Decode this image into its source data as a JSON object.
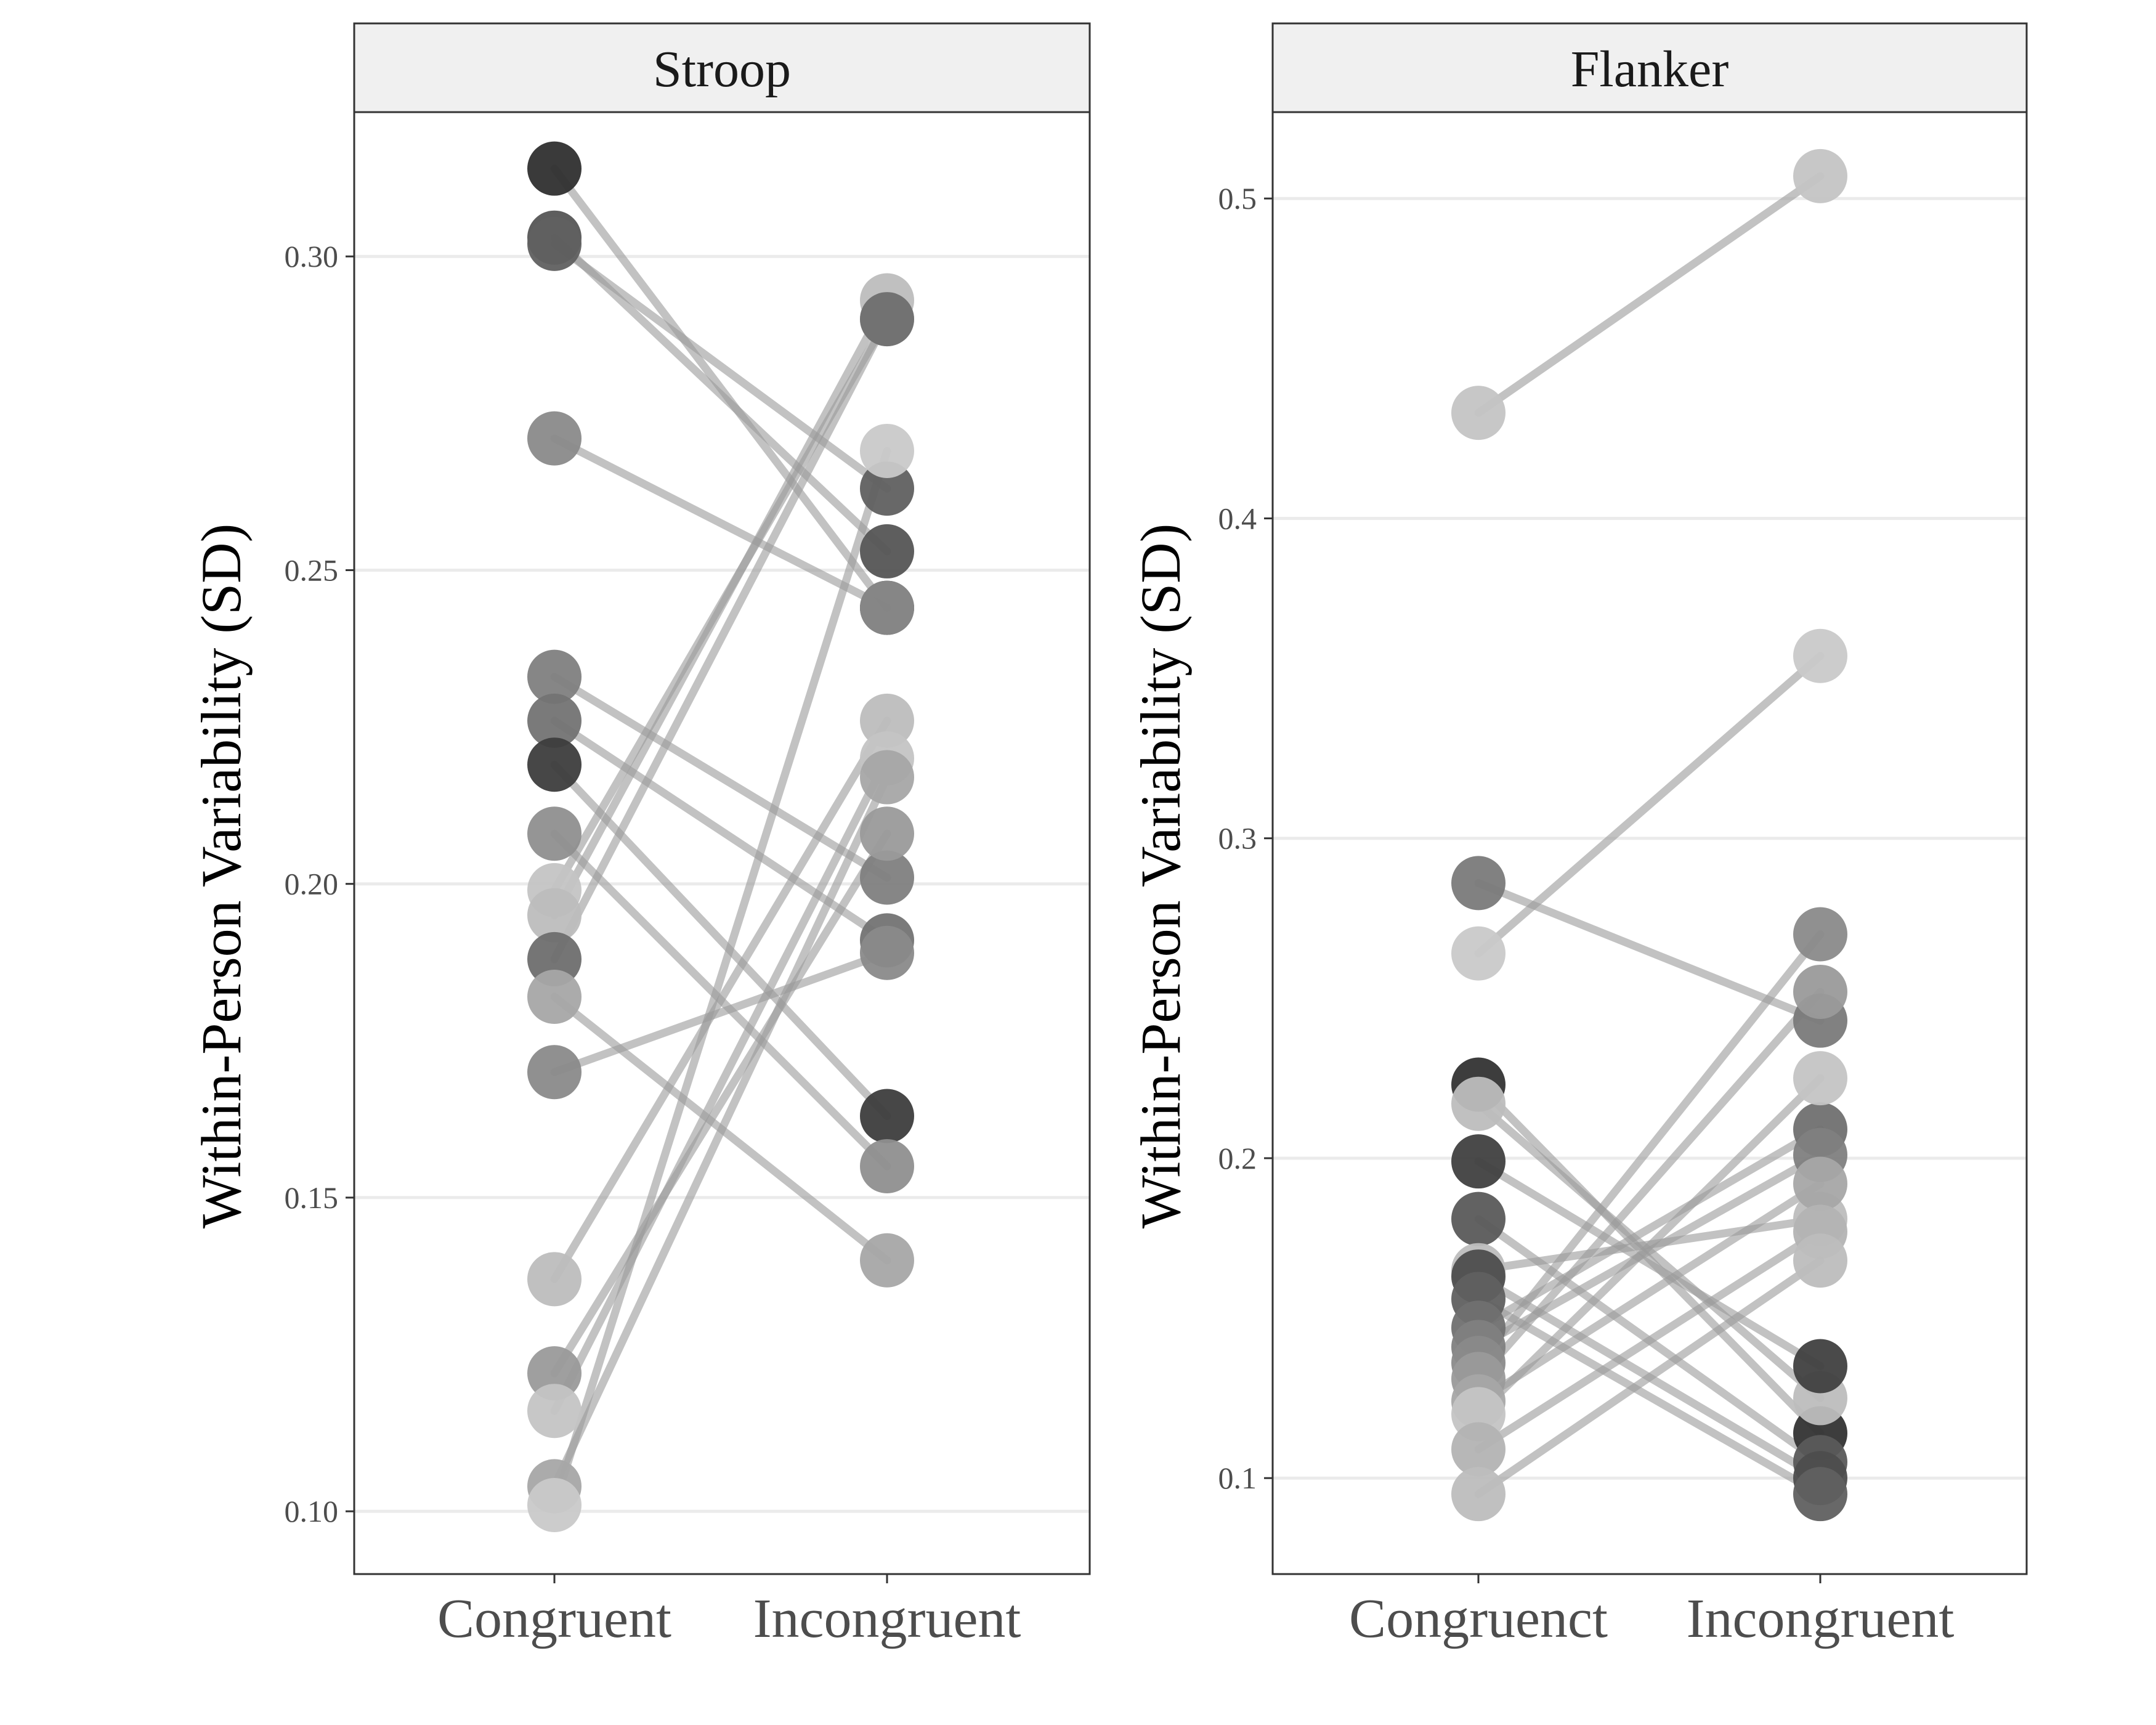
{
  "chart_data": [
    {
      "type": "slope",
      "title": "Stroop",
      "ylabel": "Within-Person Variability  (SD)",
      "categories": [
        "Congruent",
        "Incongruent"
      ],
      "ylim": [
        0.09,
        0.323
      ],
      "yticks": [
        0.1,
        0.15,
        0.2,
        0.25,
        0.3
      ],
      "ytick_labels": [
        "0.10",
        "0.15",
        "0.20",
        "0.25",
        "0.30"
      ],
      "grid": true,
      "pairs": [
        {
          "congruent": 0.314,
          "incongruent": 0.244,
          "shade": "#2f2f2f"
        },
        {
          "congruent": 0.303,
          "incongruent": 0.253,
          "shade": "#555555"
        },
        {
          "congruent": 0.302,
          "incongruent": 0.263,
          "shade": "#606060"
        },
        {
          "congruent": 0.271,
          "incongruent": 0.244,
          "shade": "#8a8a8a"
        },
        {
          "congruent": 0.233,
          "incongruent": 0.201,
          "shade": "#7f7f7f"
        },
        {
          "congruent": 0.226,
          "incongruent": 0.191,
          "shade": "#737373"
        },
        {
          "congruent": 0.219,
          "incongruent": 0.163,
          "shade": "#3d3d3d"
        },
        {
          "congruent": 0.208,
          "incongruent": 0.155,
          "shade": "#8f8f8f"
        },
        {
          "congruent": 0.199,
          "incongruent": 0.29,
          "shade": "#c4c4c4"
        },
        {
          "congruent": 0.195,
          "incongruent": 0.293,
          "shade": "#bdbdbd"
        },
        {
          "congruent": 0.188,
          "incongruent": 0.29,
          "shade": "#6e6e6e"
        },
        {
          "congruent": 0.182,
          "incongruent": 0.14,
          "shade": "#a6a6a6"
        },
        {
          "congruent": 0.17,
          "incongruent": 0.189,
          "shade": "#8a8a8a"
        },
        {
          "congruent": 0.137,
          "incongruent": 0.226,
          "shade": "#bdbdbd"
        },
        {
          "congruent": 0.122,
          "incongruent": 0.208,
          "shade": "#9a9a9a"
        },
        {
          "congruent": 0.116,
          "incongruent": 0.22,
          "shade": "#c4c4c4"
        },
        {
          "congruent": 0.104,
          "incongruent": 0.217,
          "shade": "#a6a6a6"
        },
        {
          "congruent": 0.101,
          "incongruent": 0.269,
          "shade": "#c9c9c9"
        }
      ]
    },
    {
      "type": "slope",
      "title": "Flanker",
      "ylabel": "Within-Person Variability  (SD)",
      "categories": [
        "Congruenct",
        "Incongruent"
      ],
      "ylim": [
        0.07,
        0.527
      ],
      "yticks": [
        0.1,
        0.2,
        0.3,
        0.4,
        0.5
      ],
      "ytick_labels": [
        "0.1",
        "0.2",
        "0.3",
        "0.4",
        "0.5"
      ],
      "grid": true,
      "pairs": [
        {
          "congruent": 0.433,
          "incongruent": 0.507,
          "shade": "#c4c4c4"
        },
        {
          "congruent": 0.264,
          "incongruent": 0.357,
          "shade": "#c9c9c9"
        },
        {
          "congruent": 0.286,
          "incongruent": 0.243,
          "shade": "#7a7a7a"
        },
        {
          "congruent": 0.223,
          "incongruent": 0.114,
          "shade": "#333333"
        },
        {
          "congruent": 0.217,
          "incongruent": 0.125,
          "shade": "#bdbdbd"
        },
        {
          "congruent": 0.199,
          "incongruent": 0.135,
          "shade": "#404040"
        },
        {
          "congruent": 0.181,
          "incongruent": 0.105,
          "shade": "#5a5a5a"
        },
        {
          "congruent": 0.165,
          "incongruent": 0.181,
          "shade": "#bdbdbd"
        },
        {
          "congruent": 0.163,
          "incongruent": 0.1,
          "shade": "#4d4d4d"
        },
        {
          "congruent": 0.156,
          "incongruent": 0.095,
          "shade": "#606060"
        },
        {
          "congruent": 0.147,
          "incongruent": 0.209,
          "shade": "#707070"
        },
        {
          "congruent": 0.141,
          "incongruent": 0.201,
          "shade": "#7f7f7f"
        },
        {
          "congruent": 0.136,
          "incongruent": 0.27,
          "shade": "#8a8a8a"
        },
        {
          "congruent": 0.131,
          "incongruent": 0.252,
          "shade": "#9a9a9a"
        },
        {
          "congruent": 0.124,
          "incongruent": 0.192,
          "shade": "#a6a6a6"
        },
        {
          "congruent": 0.12,
          "incongruent": 0.225,
          "shade": "#c4c4c4"
        },
        {
          "congruent": 0.109,
          "incongruent": 0.177,
          "shade": "#b3b3b3"
        },
        {
          "congruent": 0.095,
          "incongruent": 0.168,
          "shade": "#bdbdbd"
        }
      ]
    }
  ],
  "colors": {
    "connector_line": "#9a9a9a",
    "grid": "#ebebeb",
    "strip_background": "#f0f0f0",
    "panel_border": "#333333"
  }
}
